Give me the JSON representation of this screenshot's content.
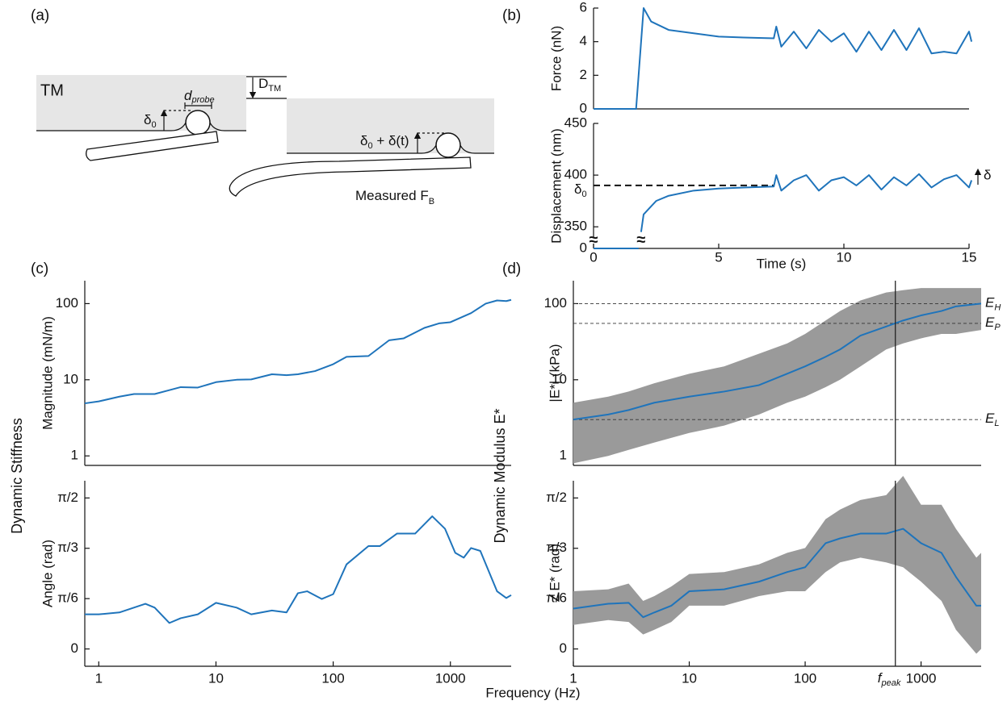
{
  "panel_labels": [
    "(a)",
    "(b)",
    "(c)",
    "(d)"
  ],
  "diagram": {
    "tm": "TM",
    "d_probe": {
      "main": "d",
      "sub": "probe"
    },
    "d_tm": {
      "main": "D",
      "sub": "TM"
    },
    "delta0": {
      "main": "δ",
      "sub": "0"
    },
    "delta_t": {
      "main": "δ",
      "sub": "0",
      "rest": " + δ(t)"
    },
    "measured": {
      "main": "Measured F",
      "sub": "B"
    }
  },
  "shared_labels": {
    "stiffness": "Dynamic Stiffness",
    "modulus": "Dynamic Modulus E*",
    "frequency": "Frequency (Hz)"
  },
  "chart_data": [
    {
      "type": "line",
      "ylabel": "Force (nN)",
      "color": "#1f74bb",
      "xlim": [
        0,
        15
      ],
      "ylim": [
        0,
        6
      ],
      "yticks": [
        0,
        2,
        4,
        6
      ],
      "x": [
        0,
        1.7,
        2.0,
        2.3,
        3,
        4,
        5,
        6,
        7.2,
        7.3,
        7.5,
        8,
        8.5,
        9,
        9.5,
        10,
        10.5,
        11,
        11.5,
        12,
        12.5,
        13,
        13.5,
        14,
        14.5,
        15,
        15.1
      ],
      "values": [
        0,
        0,
        6,
        5.2,
        4.7,
        4.5,
        4.3,
        4.25,
        4.2,
        4.9,
        3.7,
        4.6,
        3.6,
        4.7,
        4.0,
        4.5,
        3.4,
        4.6,
        3.5,
        4.7,
        3.5,
        4.8,
        3.3,
        3.4,
        3.3,
        4.6,
        4.0
      ]
    },
    {
      "type": "line",
      "ylabel": "Displacement (nm)",
      "xlabel": "Time (s)",
      "color": "#1f74bb",
      "xlim": [
        0,
        15
      ],
      "xticks": [
        0,
        5,
        10,
        15
      ],
      "ylim": [
        0,
        450
      ],
      "y_break": [
        5,
        340
      ],
      "break_mark": "≈",
      "yticks": [
        0,
        350,
        400,
        450
      ],
      "reference": {
        "value": 390,
        "label": "δ",
        "sub": "0"
      },
      "right_annotation": "δ",
      "x": [
        0,
        1.8,
        1.85,
        1.9,
        2.0,
        2.5,
        3,
        4,
        5,
        6,
        7.2,
        7.3,
        7.5,
        8,
        8.5,
        9,
        9.5,
        10,
        10.5,
        11,
        11.5,
        12,
        12.5,
        13,
        13.5,
        14,
        14.5,
        15,
        15.1
      ],
      "values": [
        0,
        0,
        null,
        345,
        362,
        375,
        380,
        385,
        387,
        388,
        389,
        400,
        385,
        395,
        400,
        385,
        395,
        398,
        390,
        400,
        386,
        398,
        390,
        401,
        388,
        396,
        400,
        388,
        395
      ]
    },
    {
      "type": "line",
      "ylabel": "Magnitude (mN/m)",
      "color": "#1f74bb",
      "xscale": "log",
      "yscale": "log",
      "xlim": [
        0.76,
        3300
      ],
      "ylim": [
        0.75,
        200
      ],
      "yticks": [
        1,
        10,
        100
      ],
      "x": [
        0.76,
        1,
        1.5,
        2,
        3,
        4,
        5,
        7,
        10,
        15,
        20,
        30,
        40,
        50,
        70,
        100,
        130,
        200,
        300,
        400,
        600,
        800,
        1000,
        1500,
        2000,
        2500,
        3000,
        3300
      ],
      "values": [
        4.9,
        5.2,
        6,
        6.5,
        6.5,
        7.3,
        8,
        7.9,
        9.3,
        10,
        10.1,
        11.8,
        11.5,
        11.8,
        13,
        16,
        20,
        20.5,
        33,
        35,
        48,
        55,
        57,
        75,
        100,
        110,
        108,
        112
      ]
    },
    {
      "type": "line",
      "ylabel": "Angle (rad)",
      "color": "#1f74bb",
      "xscale": "log",
      "xlim": [
        0.76,
        3300
      ],
      "xticks": [
        1,
        10,
        100,
        1000
      ],
      "ylim": [
        -0.18,
        1.75
      ],
      "yticks": [
        0,
        {
          "value": 0.5236,
          "label": "π/6"
        },
        {
          "value": 1.0472,
          "label": "π/3"
        },
        {
          "value": 1.5708,
          "label": "π/2"
        }
      ],
      "x": [
        0.76,
        1,
        1.5,
        2.5,
        3,
        4,
        5,
        7,
        10,
        15,
        20,
        30,
        40,
        50,
        60,
        80,
        100,
        130,
        200,
        250,
        350,
        500,
        700,
        900,
        1100,
        1300,
        1500,
        1800,
        2500,
        3000,
        3300
      ],
      "values": [
        0.36,
        0.36,
        0.38,
        0.47,
        0.43,
        0.27,
        0.32,
        0.36,
        0.48,
        0.43,
        0.36,
        0.4,
        0.38,
        0.58,
        0.6,
        0.52,
        0.57,
        0.88,
        1.07,
        1.07,
        1.2,
        1.2,
        1.38,
        1.25,
        1.0,
        0.95,
        1.05,
        1.02,
        0.6,
        0.53,
        0.56
      ]
    },
    {
      "type": "band",
      "ylabel": "|E*| (kPa)",
      "color": "#1f74bb",
      "band_color": "#9a9a9a",
      "xscale": "log",
      "yscale": "log",
      "xlim": [
        1,
        3300
      ],
      "ylim": [
        0.75,
        200
      ],
      "yticks": [
        1,
        10,
        100
      ],
      "references": [
        {
          "value": 100,
          "label": "E",
          "sub": "H"
        },
        {
          "value": 55,
          "label": "E",
          "sub": "P"
        },
        {
          "value": 3,
          "label": "E",
          "sub": "L"
        }
      ],
      "vline": {
        "value": 600
      },
      "x": [
        1,
        2,
        3,
        5,
        10,
        20,
        40,
        70,
        100,
        150,
        200,
        300,
        500,
        700,
        1000,
        1500,
        2000,
        3300
      ],
      "values": [
        3,
        3.5,
        4,
        5,
        6,
        7,
        8.5,
        12,
        15,
        20,
        25,
        38,
        50,
        60,
        70,
        80,
        92,
        100
      ],
      "lower": [
        0.8,
        1,
        1.2,
        1.5,
        2,
        2.5,
        3.5,
        5,
        6,
        8,
        10,
        15,
        25,
        30,
        35,
        40,
        40,
        45
      ],
      "upper": [
        5,
        6,
        7,
        9,
        12,
        15,
        22,
        30,
        40,
        60,
        80,
        110,
        140,
        150,
        160,
        160,
        160,
        160
      ]
    },
    {
      "type": "band",
      "ylabel": "∠E* (rad)",
      "color": "#1f74bb",
      "band_color": "#9a9a9a",
      "xscale": "log",
      "xlim": [
        1,
        3300
      ],
      "xticks": [
        1,
        10,
        100,
        1000
      ],
      "ylim": [
        -0.18,
        1.75
      ],
      "yticks": [
        0,
        {
          "value": 0.5236,
          "label": "π/6"
        },
        {
          "value": 1.0472,
          "label": "π/3"
        },
        {
          "value": 1.5708,
          "label": "π/2"
        }
      ],
      "vline": {
        "value": 600,
        "label": "f",
        "sub": "peak"
      },
      "x": [
        1,
        2,
        3,
        4,
        5,
        7,
        10,
        20,
        40,
        70,
        100,
        150,
        200,
        300,
        500,
        700,
        1000,
        1500,
        2000,
        3000,
        3300
      ],
      "values": [
        0.42,
        0.47,
        0.48,
        0.33,
        0.38,
        0.45,
        0.6,
        0.62,
        0.7,
        0.8,
        0.85,
        1.1,
        1.15,
        1.2,
        1.2,
        1.25,
        1.1,
        1.0,
        0.75,
        0.45,
        0.45
      ],
      "lower": [
        0.25,
        0.3,
        0.28,
        0.15,
        0.2,
        0.28,
        0.45,
        0.45,
        0.55,
        0.6,
        0.6,
        0.8,
        0.9,
        0.95,
        0.9,
        0.85,
        0.7,
        0.5,
        0.2,
        -0.05,
        0.0
      ],
      "upper": [
        0.6,
        0.62,
        0.68,
        0.5,
        0.55,
        0.65,
        0.78,
        0.8,
        0.88,
        1.0,
        1.05,
        1.35,
        1.45,
        1.55,
        1.6,
        1.8,
        1.5,
        1.5,
        1.25,
        0.95,
        1.0
      ]
    }
  ]
}
